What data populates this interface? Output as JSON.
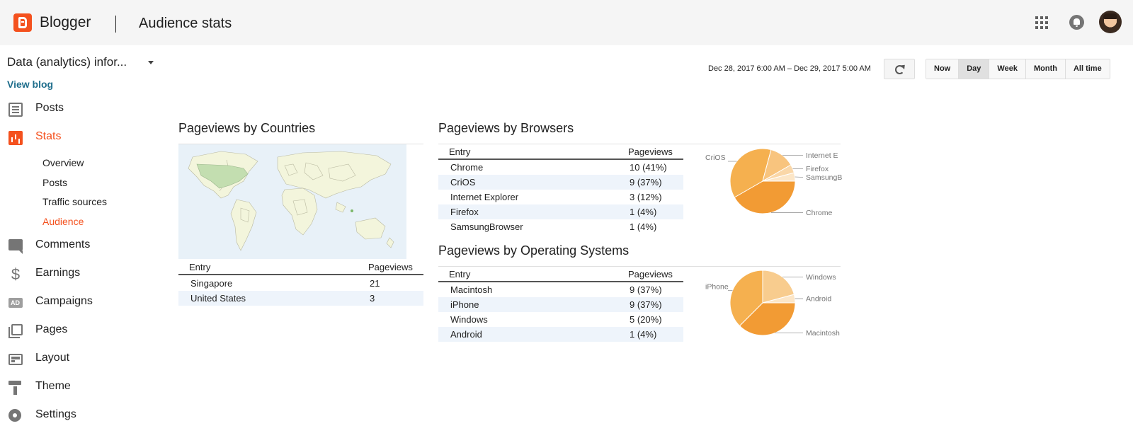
{
  "header": {
    "brand": "Blogger",
    "page_title": "Audience stats",
    "icons": [
      "apps-icon",
      "notifications-icon",
      "avatar"
    ]
  },
  "sidebar": {
    "blog_name": "Data (analytics) infor...",
    "view_blog": "View blog",
    "items": [
      {
        "label": "Posts",
        "icon": "posts-icon"
      },
      {
        "label": "Stats",
        "icon": "stats-icon",
        "active": true
      },
      {
        "label": "Comments",
        "icon": "comments-icon"
      },
      {
        "label": "Earnings",
        "icon": "dollar-icon"
      },
      {
        "label": "Campaigns",
        "icon": "ad-icon"
      },
      {
        "label": "Pages",
        "icon": "pages-icon"
      },
      {
        "label": "Layout",
        "icon": "layout-icon"
      },
      {
        "label": "Theme",
        "icon": "paint-roller-icon"
      },
      {
        "label": "Settings",
        "icon": "gear-icon"
      }
    ],
    "stats_subitems": [
      {
        "label": "Overview"
      },
      {
        "label": "Posts"
      },
      {
        "label": "Traffic sources"
      },
      {
        "label": "Audience",
        "active": true
      }
    ]
  },
  "controls": {
    "date_range": "Dec 28, 2017 6:00 AM – Dec 29, 2017 5:00 AM",
    "ranges": [
      "Now",
      "Day",
      "Week",
      "Month",
      "All time"
    ],
    "selected_range": "Day"
  },
  "countries": {
    "title": "Pageviews by Countries",
    "col_entry": "Entry",
    "col_pageviews": "Pageviews",
    "rows": [
      {
        "entry": "Singapore",
        "pageviews": "21"
      },
      {
        "entry": "United States",
        "pageviews": "3"
      }
    ]
  },
  "browsers": {
    "title": "Pageviews by Browsers",
    "col_entry": "Entry",
    "col_pageviews": "Pageviews",
    "rows": [
      {
        "entry": "Chrome",
        "pageviews": "10 (41%)"
      },
      {
        "entry": "CriOS",
        "pageviews": "9 (37%)"
      },
      {
        "entry": "Internet Explorer",
        "pageviews": "3 (12%)"
      },
      {
        "entry": "Firefox",
        "pageviews": "1 (4%)"
      },
      {
        "entry": "SamsungBrowser",
        "pageviews": "1 (4%)"
      }
    ]
  },
  "os": {
    "title": "Pageviews by Operating Systems",
    "col_entry": "Entry",
    "col_pageviews": "Pageviews",
    "rows": [
      {
        "entry": "Macintosh",
        "pageviews": "9 (37%)"
      },
      {
        "entry": "iPhone",
        "pageviews": "9 (37%)"
      },
      {
        "entry": "Windows",
        "pageviews": "5 (20%)"
      },
      {
        "entry": "Android",
        "pageviews": "1 (4%)"
      }
    ]
  },
  "chart_data": [
    {
      "type": "pie",
      "title": "",
      "slices": [
        {
          "label": "Chrome",
          "value": 10
        },
        {
          "label": "CriOS",
          "value": 9
        },
        {
          "label": "Internet E",
          "value": 3
        },
        {
          "label": "Firefox",
          "value": 1
        },
        {
          "label": "SamsungB",
          "value": 1
        }
      ],
      "colors": [
        "#f29b34",
        "#f5b04f",
        "#f8c47e",
        "#fad7a8",
        "#fce6c7"
      ]
    },
    {
      "type": "pie",
      "title": "",
      "slices": [
        {
          "label": "Macintosh",
          "value": 9
        },
        {
          "label": "iPhone",
          "value": 9
        },
        {
          "label": "Windows",
          "value": 5
        },
        {
          "label": "Android",
          "value": 1
        }
      ],
      "colors": [
        "#f29b34",
        "#f5b04f",
        "#f8cc8e",
        "#fce6c7"
      ]
    }
  ],
  "colors": {
    "accent": "#f4511e",
    "link": "#1f6e8c",
    "header_bg": "#f5f5f5",
    "row_alt": "#eef4fb"
  }
}
